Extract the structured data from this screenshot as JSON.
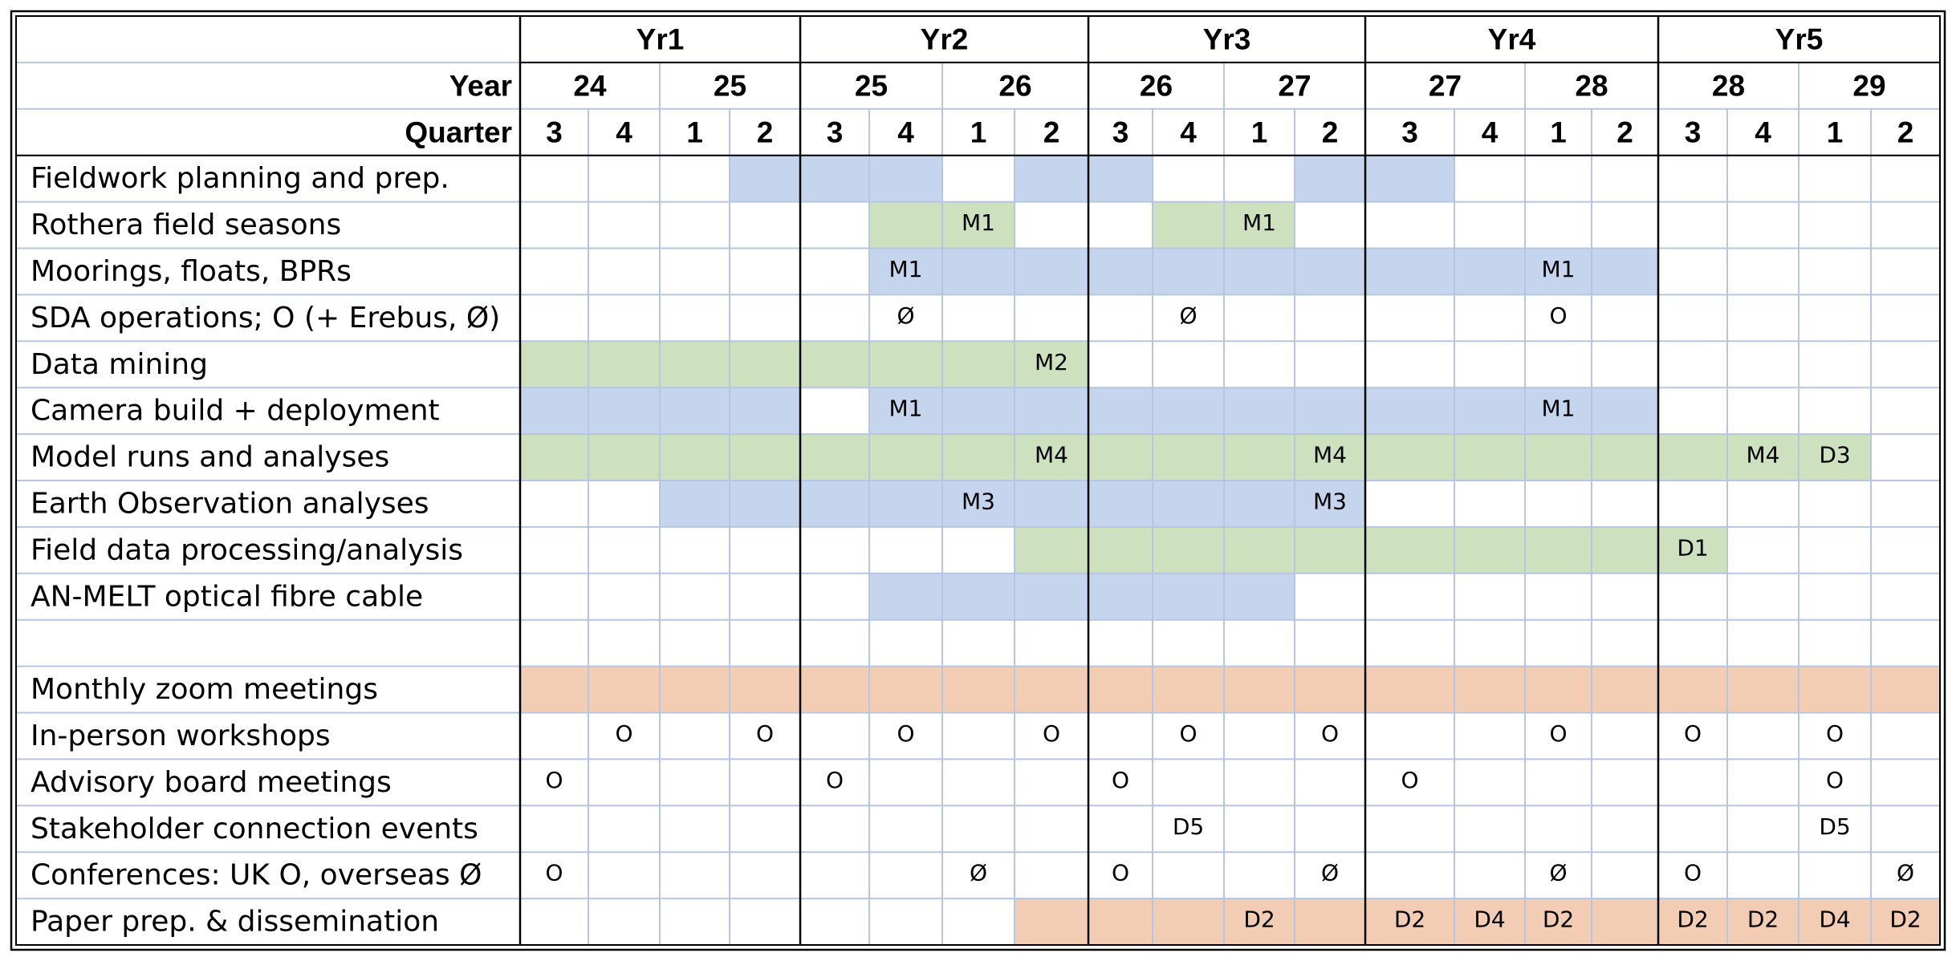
{
  "chart_data": {
    "type": "table",
    "colors": {
      "blue": "#c5d5ee",
      "green": "#cde1bf",
      "orange": "#f2cdb3",
      "grid": "#b7c6e0",
      "border": "#000000"
    },
    "years": [
      {
        "label": "Yr1",
        "span": 4
      },
      {
        "label": "Yr2",
        "span": 4
      },
      {
        "label": "Yr3",
        "span": 4
      },
      {
        "label": "Yr4",
        "span": 4
      },
      {
        "label": "Yr5",
        "span": 4
      }
    ],
    "year_row_label": "Year",
    "year_groups": [
      {
        "label": "24",
        "span": 2
      },
      {
        "label": "25",
        "span": 2
      },
      {
        "label": "25",
        "span": 2
      },
      {
        "label": "26",
        "span": 2
      },
      {
        "label": "26",
        "span": 2
      },
      {
        "label": "27",
        "span": 2
      },
      {
        "label": "27",
        "span": 2
      },
      {
        "label": "28",
        "span": 2
      },
      {
        "label": "28",
        "span": 2
      },
      {
        "label": "29",
        "span": 2
      }
    ],
    "quarter_row_label": "Quarter",
    "quarters": [
      "3",
      "4",
      "1",
      "2",
      "3",
      "4",
      "1",
      "2",
      "3",
      "4",
      "1",
      "2",
      "3",
      "4",
      "1",
      "2",
      "3",
      "4",
      "1",
      "2"
    ],
    "rows": [
      {
        "label": "Fieldwork planning and prep.",
        "bars": [
          {
            "from": 3,
            "to": 5,
            "color": "blue"
          },
          {
            "from": 7,
            "to": 8,
            "color": "blue"
          },
          {
            "from": 11,
            "to": 12,
            "color": "blue"
          }
        ],
        "marks": []
      },
      {
        "label": "Rothera field seasons",
        "bars": [
          {
            "from": 5,
            "to": 6,
            "color": "green"
          },
          {
            "from": 9,
            "to": 10,
            "color": "green"
          }
        ],
        "marks": [
          {
            "q": 6,
            "text": "M1"
          },
          {
            "q": 10,
            "text": "M1"
          }
        ]
      },
      {
        "label": "Moorings, floats, BPRs",
        "bars": [
          {
            "from": 5,
            "to": 15,
            "color": "blue"
          }
        ],
        "marks": [
          {
            "q": 5,
            "text": "M1"
          },
          {
            "q": 14,
            "text": "M1"
          }
        ]
      },
      {
        "label": "SDA operations; O (+ Erebus, Ø)",
        "bars": [],
        "marks": [
          {
            "q": 5,
            "text": "Ø"
          },
          {
            "q": 9,
            "text": "Ø"
          },
          {
            "q": 14,
            "text": "O"
          }
        ]
      },
      {
        "label": "Data mining",
        "bars": [
          {
            "from": 0,
            "to": 7,
            "color": "green"
          }
        ],
        "marks": [
          {
            "q": 7,
            "text": "M2"
          }
        ]
      },
      {
        "label": "Camera build + deployment",
        "bars": [
          {
            "from": 0,
            "to": 3,
            "color": "blue"
          },
          {
            "from": 5,
            "to": 15,
            "color": "blue"
          }
        ],
        "marks": [
          {
            "q": 5,
            "text": "M1"
          },
          {
            "q": 14,
            "text": "M1"
          }
        ]
      },
      {
        "label": "Model runs and analyses",
        "bars": [
          {
            "from": 0,
            "to": 18,
            "color": "green"
          }
        ],
        "marks": [
          {
            "q": 7,
            "text": "M4"
          },
          {
            "q": 11,
            "text": "M4"
          },
          {
            "q": 17,
            "text": "M4"
          },
          {
            "q": 18,
            "text": "D3"
          }
        ]
      },
      {
        "label": "Earth Observation analyses",
        "bars": [
          {
            "from": 2,
            "to": 11,
            "color": "blue"
          }
        ],
        "marks": [
          {
            "q": 6,
            "text": "M3"
          },
          {
            "q": 11,
            "text": "M3"
          }
        ]
      },
      {
        "label": "Field data processing/analysis",
        "bars": [
          {
            "from": 7,
            "to": 16,
            "color": "green"
          }
        ],
        "marks": [
          {
            "q": 16,
            "text": "D1"
          }
        ]
      },
      {
        "label": "AN-MELT optical fibre cable",
        "bars": [
          {
            "from": 5,
            "to": 10,
            "color": "blue"
          }
        ],
        "marks": []
      },
      {
        "label": "",
        "bars": [],
        "marks": []
      },
      {
        "label": "Monthly zoom meetings",
        "bars": [
          {
            "from": 0,
            "to": 19,
            "color": "orange"
          }
        ],
        "marks": []
      },
      {
        "label": "In-person workshops",
        "bars": [],
        "marks": [
          {
            "q": 1,
            "text": "O"
          },
          {
            "q": 3,
            "text": "O"
          },
          {
            "q": 5,
            "text": "O"
          },
          {
            "q": 7,
            "text": "O"
          },
          {
            "q": 9,
            "text": "O"
          },
          {
            "q": 11,
            "text": "O"
          },
          {
            "q": 14,
            "text": "O"
          },
          {
            "q": 16,
            "text": "O"
          },
          {
            "q": 18,
            "text": "O"
          }
        ]
      },
      {
        "label": "Advisory board meetings",
        "bars": [],
        "marks": [
          {
            "q": 0,
            "text": "O"
          },
          {
            "q": 4,
            "text": "O"
          },
          {
            "q": 8,
            "text": "O"
          },
          {
            "q": 12,
            "text": "O"
          },
          {
            "q": 18,
            "text": "O"
          }
        ]
      },
      {
        "label": "Stakeholder connection events",
        "bars": [],
        "marks": [
          {
            "q": 9,
            "text": "D5"
          },
          {
            "q": 18,
            "text": "D5"
          }
        ]
      },
      {
        "label": "Conferences: UK O, overseas Ø",
        "bars": [],
        "marks": [
          {
            "q": 0,
            "text": "O"
          },
          {
            "q": 6,
            "text": "Ø"
          },
          {
            "q": 8,
            "text": "O"
          },
          {
            "q": 11,
            "text": "Ø"
          },
          {
            "q": 14,
            "text": "Ø"
          },
          {
            "q": 16,
            "text": "O"
          },
          {
            "q": 19,
            "text": "Ø"
          }
        ]
      },
      {
        "label": "Paper prep. & dissemination",
        "bars": [
          {
            "from": 7,
            "to": 19,
            "color": "orange"
          }
        ],
        "marks": [
          {
            "q": 10,
            "text": "D2"
          },
          {
            "q": 12,
            "text": "D2"
          },
          {
            "q": 13,
            "text": "D4"
          },
          {
            "q": 14,
            "text": "D2"
          },
          {
            "q": 16,
            "text": "D2"
          },
          {
            "q": 17,
            "text": "D2"
          },
          {
            "q": 18,
            "text": "D4"
          },
          {
            "q": 19,
            "text": "D2"
          }
        ]
      }
    ]
  }
}
